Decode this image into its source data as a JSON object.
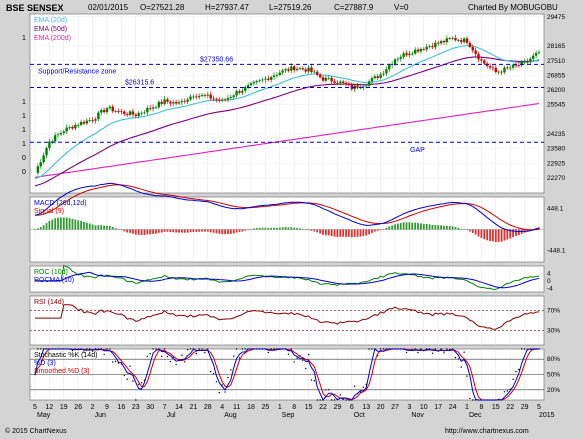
{
  "header": {
    "symbol": "BSE SENSEX",
    "date": "02/01/2015",
    "open": "O=27521.28",
    "high": "H=27937.47",
    "low": "L=27519.26",
    "close": "C=27887.9",
    "volume": "V=0",
    "charted_by": "Charted By MOBUGOBU"
  },
  "footer": {
    "copyright": "© 2015 ChartNexus",
    "url": "http://www.chartnexus.com"
  },
  "colors": {
    "ema20": "#3fc0d8",
    "ema50": "#800080",
    "ema200": "#e020c0",
    "up": "#008000",
    "down": "#cc0000",
    "macd": "#0000cc",
    "signal": "#cc0000",
    "roc": "#008000",
    "rocma": "#0000cc",
    "rsi": "#800000",
    "stoch_k": "#0000cc",
    "stoch_d": "#cc0000",
    "dashed": "#0000cc"
  },
  "chart_data": [
    {
      "type": "candlestick",
      "panel": "price",
      "title": "BSE SENSEX",
      "legend": [
        "EMA (20d)",
        "EMA (50d)",
        "EMA (200d)"
      ],
      "y_ticks": [
        29475,
        28165,
        27510,
        26855,
        26200,
        25545,
        24235,
        23580,
        22925,
        22270
      ],
      "ylim": [
        21600,
        29600
      ],
      "annotations": {
        "resistance_label": "$27350.66",
        "resistance_value": 27350.66,
        "support_label": "$26315.6",
        "support_value": 26315.6,
        "zone_label": "Support/Resistance zone",
        "gap_label": "GAP",
        "gap_value": 23870
      },
      "x_ticks": [
        "5",
        "12",
        "19",
        "26",
        "2",
        "9",
        "16",
        "23",
        "30",
        "7",
        "14",
        "21",
        "28",
        "4",
        "11",
        "18",
        "25",
        "1",
        "8",
        "15",
        "22",
        "29",
        "6",
        "13",
        "20",
        "27",
        "3",
        "10",
        "17",
        "24",
        "1",
        "8",
        "15",
        "22",
        "29",
        "5"
      ],
      "x_months": [
        "May",
        "Jun",
        "Jul",
        "Aug",
        "Sep",
        "Oct",
        "Nov",
        "Dec",
        "2015"
      ],
      "left_axis_labels": [
        "1",
        "1",
        "1",
        "1",
        "1",
        "0",
        "0"
      ],
      "series_weekly_close": [
        {
          "week": "5",
          "close": 22500
        },
        {
          "week": "12",
          "close": 23900
        },
        {
          "week": "19",
          "close": 24400
        },
        {
          "week": "26",
          "close": 24700
        },
        {
          "week": "2",
          "close": 24900
        },
        {
          "week": "9",
          "close": 25400
        },
        {
          "week": "16",
          "close": 25200
        },
        {
          "week": "23",
          "close": 25100
        },
        {
          "week": "30",
          "close": 25400
        },
        {
          "week": "7",
          "close": 25700
        },
        {
          "week": "14",
          "close": 25600
        },
        {
          "week": "21",
          "close": 26000
        },
        {
          "week": "28",
          "close": 25900
        },
        {
          "week": "4",
          "close": 25700
        },
        {
          "week": "11",
          "close": 26100
        },
        {
          "week": "18",
          "close": 26400
        },
        {
          "week": "25",
          "close": 26700
        },
        {
          "week": "1",
          "close": 27000
        },
        {
          "week": "8",
          "close": 27200
        },
        {
          "week": "15",
          "close": 27100
        },
        {
          "week": "22",
          "close": 26700
        },
        {
          "week": "29",
          "close": 26600
        },
        {
          "week": "6",
          "close": 26300
        },
        {
          "week": "13",
          "close": 26500
        },
        {
          "week": "20",
          "close": 26900
        },
        {
          "week": "27",
          "close": 27600
        },
        {
          "week": "3",
          "close": 27900
        },
        {
          "week": "10",
          "close": 28100
        },
        {
          "week": "17",
          "close": 28300
        },
        {
          "week": "24",
          "close": 28500
        },
        {
          "week": "1",
          "close": 28400
        },
        {
          "week": "8",
          "close": 27500
        },
        {
          "week": "15",
          "close": 27000
        },
        {
          "week": "22",
          "close": 27200
        },
        {
          "week": "29",
          "close": 27400
        },
        {
          "week": "5",
          "close": 27888
        }
      ]
    },
    {
      "type": "histogram+line",
      "panel": "macd",
      "legend": [
        "MACD (26d,12d)",
        "Signal (9)"
      ],
      "y_ticks": [
        448.1,
        -448.1
      ],
      "ylim": [
        -700,
        700
      ]
    },
    {
      "type": "line",
      "panel": "roc",
      "legend": [
        "ROC (10d)",
        "ROCMA (10)"
      ],
      "y_ticks": [
        4,
        0,
        -4
      ],
      "ylim": [
        -6,
        8
      ]
    },
    {
      "type": "line",
      "panel": "rsi",
      "legend": [
        "RSI (14d)"
      ],
      "y_ticks": [
        "70%",
        "30%"
      ],
      "ylim": [
        0,
        100
      ],
      "levels": [
        70,
        30
      ]
    },
    {
      "type": "line",
      "panel": "stochastic",
      "legend": [
        "Stochastic %K (14d)",
        "%D (3)",
        "Smoothed %D (3)"
      ],
      "y_ticks": [
        "80%",
        "50%",
        "20%"
      ],
      "ylim": [
        0,
        100
      ],
      "levels": [
        80,
        50,
        20
      ]
    }
  ]
}
